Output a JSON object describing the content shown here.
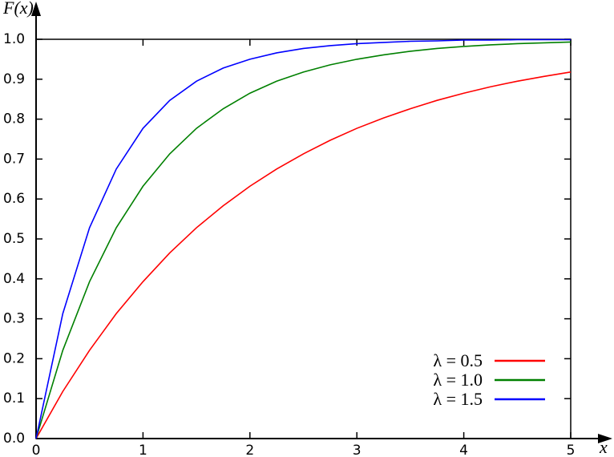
{
  "chart_data": {
    "type": "line",
    "ylabel": "F(x)",
    "xlabel": "x",
    "x": [
      0,
      0.25,
      0.5,
      0.75,
      1,
      1.25,
      1.5,
      1.75,
      2,
      2.25,
      2.5,
      2.75,
      3,
      3.25,
      3.5,
      3.75,
      4,
      4.25,
      4.5,
      4.75,
      5
    ],
    "series": [
      {
        "name": "λ = 0.5",
        "color": "#ff0000",
        "values": [
          0,
          0.118,
          0.221,
          0.313,
          0.393,
          0.465,
          0.528,
          0.583,
          0.632,
          0.675,
          0.713,
          0.747,
          0.777,
          0.803,
          0.826,
          0.847,
          0.865,
          0.881,
          0.895,
          0.907,
          0.918
        ]
      },
      {
        "name": "λ = 1.0",
        "color": "#008000",
        "values": [
          0,
          0.221,
          0.393,
          0.528,
          0.632,
          0.713,
          0.777,
          0.826,
          0.865,
          0.895,
          0.918,
          0.936,
          0.95,
          0.961,
          0.97,
          0.977,
          0.982,
          0.986,
          0.989,
          0.991,
          0.993
        ]
      },
      {
        "name": "λ = 1.5",
        "color": "#0000ff",
        "values": [
          0,
          0.313,
          0.528,
          0.675,
          0.777,
          0.847,
          0.895,
          0.928,
          0.95,
          0.966,
          0.977,
          0.984,
          0.989,
          0.992,
          0.995,
          0.996,
          0.998,
          0.998,
          0.999,
          0.999,
          0.999
        ]
      }
    ],
    "xlim": [
      0,
      5
    ],
    "xticks": [
      0,
      1,
      2,
      3,
      4,
      5
    ],
    "ylim": [
      0,
      1
    ],
    "yticks": [
      {
        "value": 0,
        "label": "0.0"
      },
      0.1,
      0.2,
      0.3,
      0.4,
      0.5,
      0.6,
      0.7,
      0.8,
      0.9,
      {
        "value": 1,
        "label": "1.0"
      }
    ],
    "legend": "lower right"
  }
}
